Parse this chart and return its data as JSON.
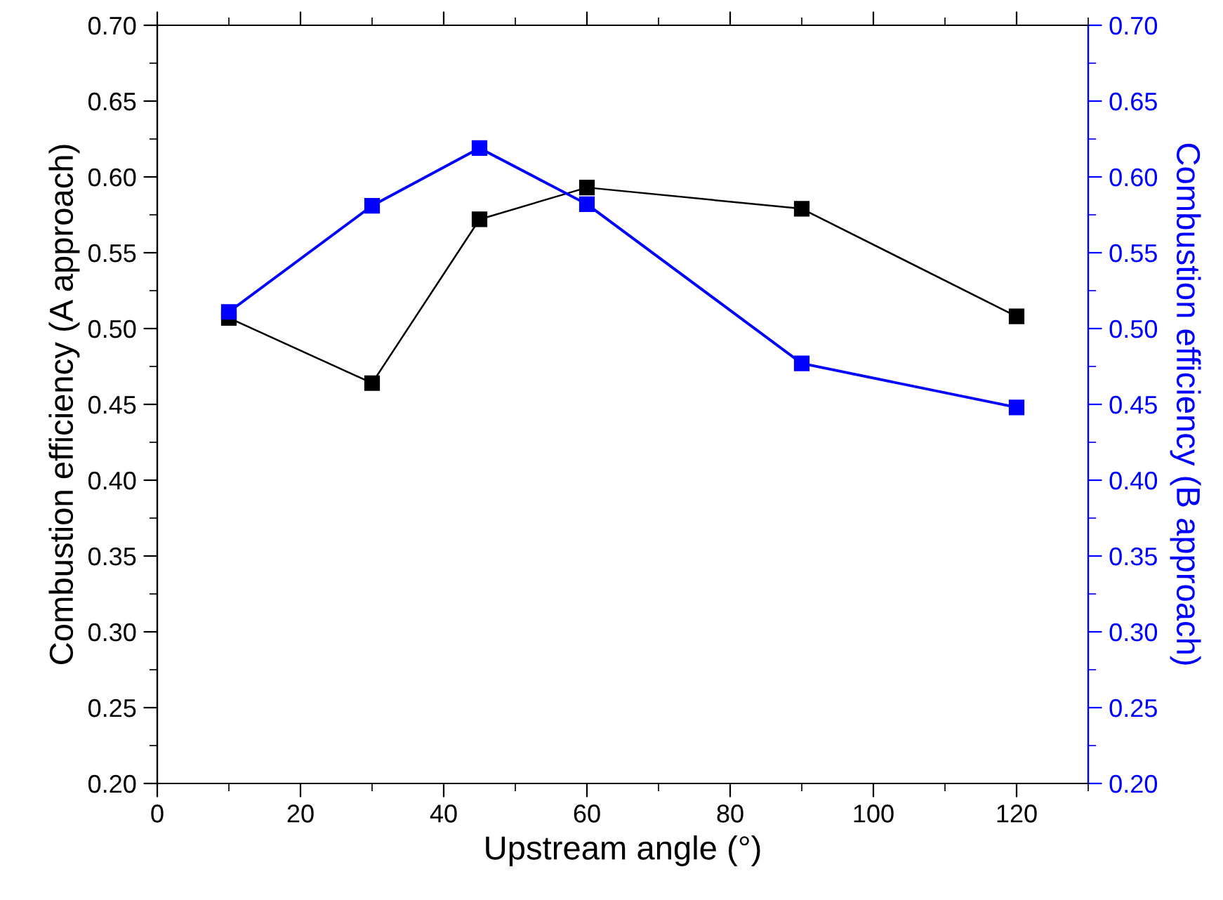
{
  "chart_data": {
    "type": "line",
    "xlabel": "Upstream angle (°)",
    "ylabel": "Combustion efficiency (A approach)",
    "y2label": "Combustion efficiency (B approach)",
    "x": [
      10,
      30,
      45,
      60,
      90,
      120
    ],
    "series": [
      {
        "color": "#000000",
        "values": [
          0.507,
          0.464,
          0.572,
          0.593,
          0.579,
          0.508
        ]
      },
      {
        "color": "#0000ff",
        "axis": "y2",
        "values": [
          0.511,
          0.581,
          0.619,
          0.582,
          0.477,
          0.448
        ]
      }
    ],
    "xlim": [
      0,
      130
    ],
    "xticks": [
      0,
      20,
      40,
      60,
      80,
      100,
      120
    ],
    "ylim": [
      0.2,
      0.7
    ],
    "yticks": [
      {
        "value": 0.2,
        "label": "0.20"
      },
      0.25,
      {
        "value": 0.3,
        "label": "0.30"
      },
      0.35,
      {
        "value": 0.4,
        "label": "0.40"
      },
      0.45,
      {
        "value": 0.5,
        "label": "0.50"
      },
      0.55,
      {
        "value": 0.6,
        "label": "0.60"
      },
      0.65,
      {
        "value": 0.7,
        "label": "0.70"
      }
    ],
    "y2lim": [
      0.2,
      0.7
    ],
    "y2ticks": [
      {
        "value": 0.2,
        "label": "0.20"
      },
      0.25,
      {
        "value": 0.3,
        "label": "0.30"
      },
      0.35,
      {
        "value": 0.4,
        "label": "0.40"
      },
      0.45,
      {
        "value": 0.5,
        "label": "0.50"
      },
      0.55,
      {
        "value": 0.6,
        "label": "0.60"
      },
      0.65,
      {
        "value": 0.7,
        "label": "0.70"
      }
    ],
    "marker": "square",
    "line_style": "solid",
    "grid": false,
    "legend": false
  }
}
